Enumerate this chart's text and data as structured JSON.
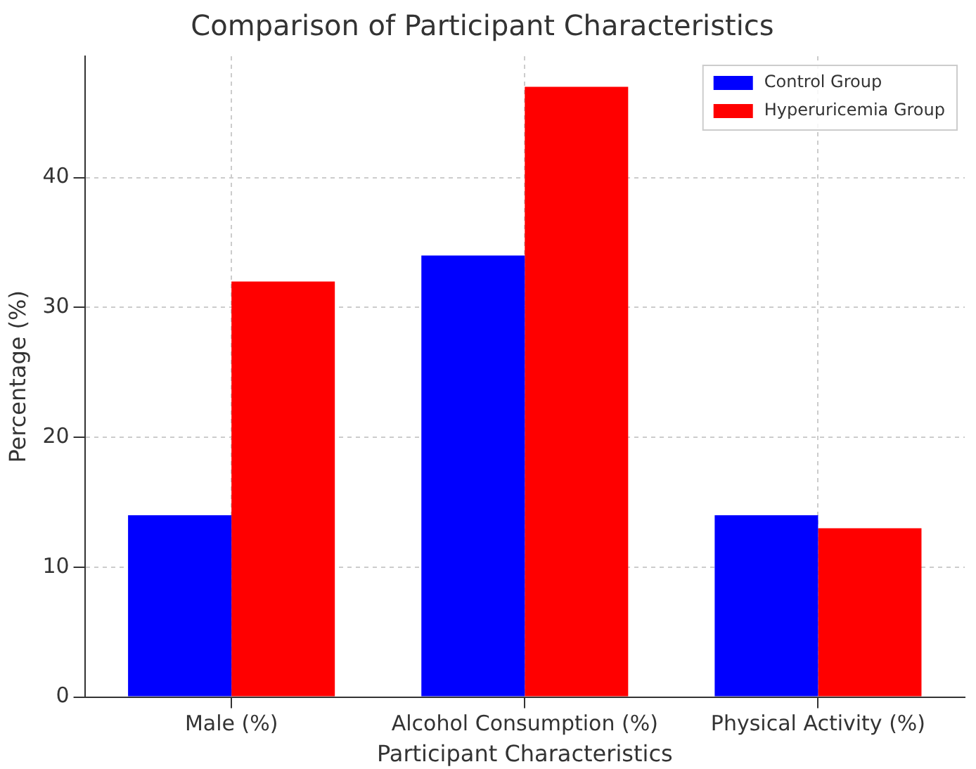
{
  "chart_data": {
    "type": "bar",
    "title": "Comparison of Participant Characteristics",
    "xlabel": "Participant Characteristics",
    "ylabel": "Percentage (%)",
    "categories": [
      "Male (%)",
      "Alcohol Consumption (%)",
      "Physical Activity (%)"
    ],
    "series": [
      {
        "name": "Control Group",
        "color": "#0000ff",
        "values": [
          14,
          34,
          14
        ]
      },
      {
        "name": "Hyperuricemia Group",
        "color": "#ff0000",
        "values": [
          32,
          47,
          13
        ]
      }
    ],
    "ylim": [
      0,
      49.35
    ],
    "yticks": [
      0,
      10,
      20,
      30,
      40
    ],
    "grid": true,
    "legend": "top right"
  }
}
